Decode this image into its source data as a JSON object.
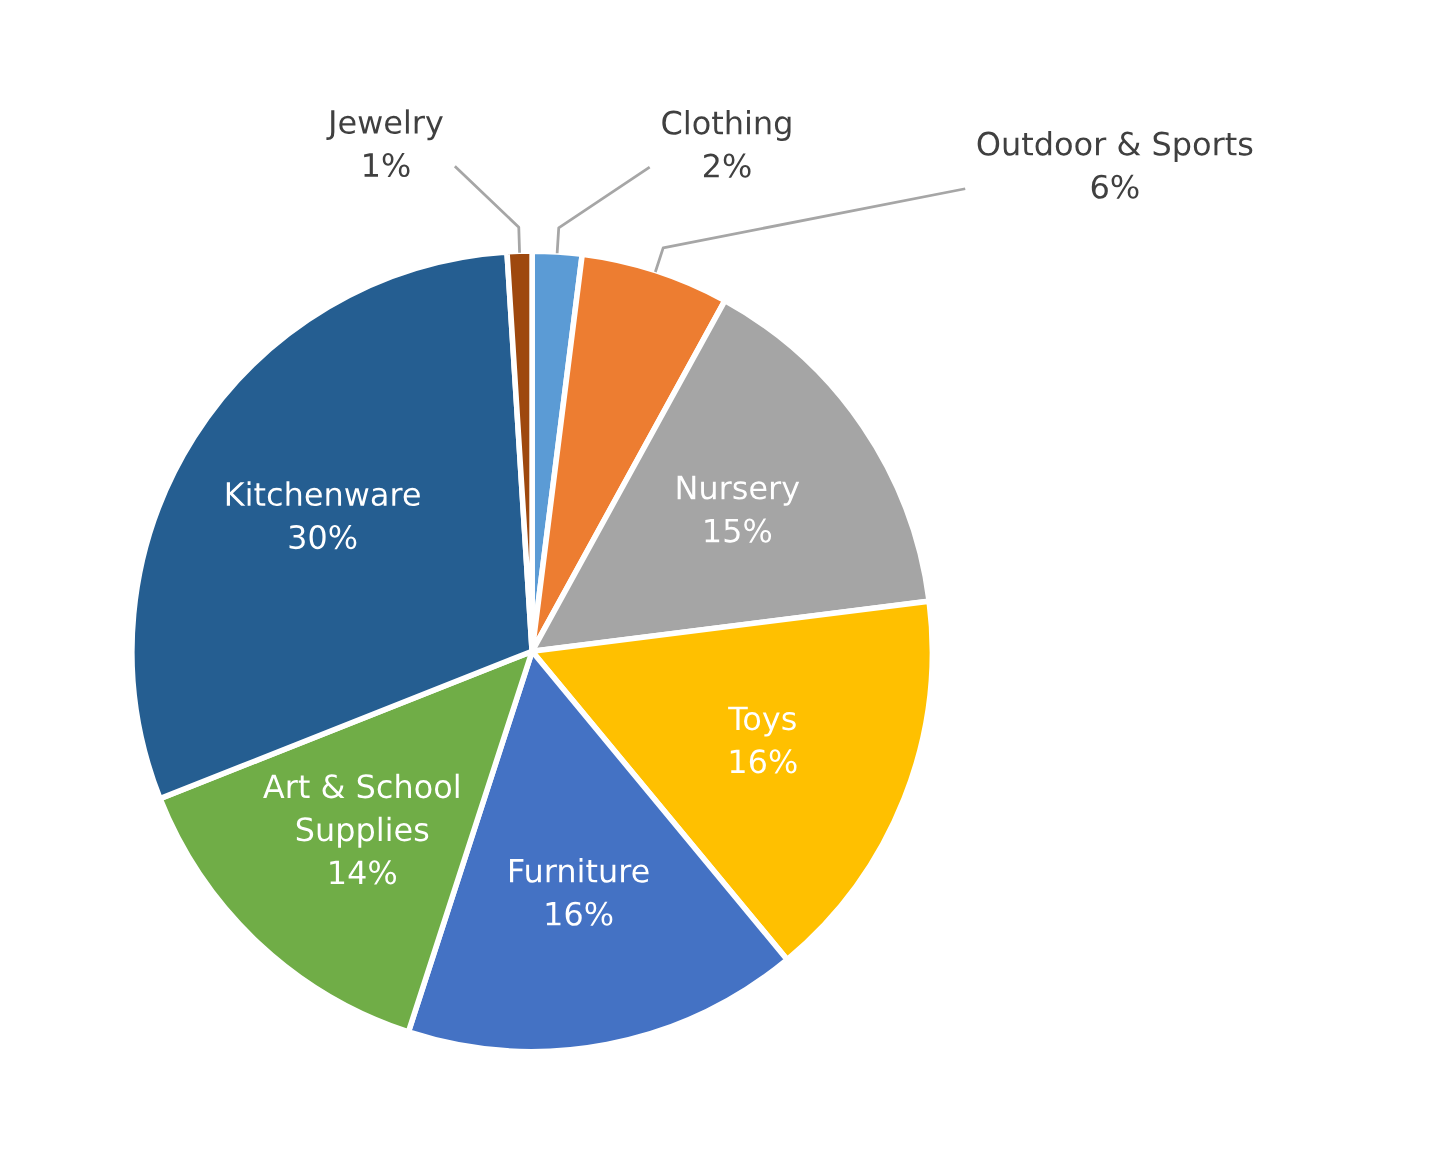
{
  "chart_data": {
    "type": "pie",
    "categories": [
      "Clothing",
      "Outdoor & Sports",
      "Nursery",
      "Toys",
      "Furniture",
      "Art & School Supplies",
      "Kitchenware",
      "Jewelry"
    ],
    "values": [
      2,
      6,
      15,
      16,
      16,
      14,
      30,
      1
    ],
    "colors": [
      "#5b9bd5",
      "#ed7d31",
      "#a5a5a5",
      "#ffc000",
      "#4472c4",
      "#70ad47",
      "#255e91",
      "#9e480e"
    ],
    "value_labels": [
      "2%",
      "6%",
      "15%",
      "16%",
      "16%",
      "14%",
      "30%",
      "1%"
    ],
    "legend": false
  }
}
